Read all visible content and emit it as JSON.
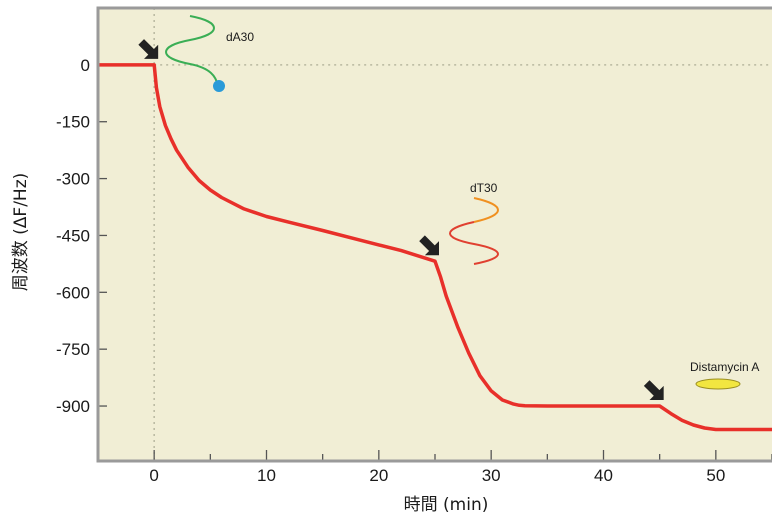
{
  "chart_data": {
    "type": "line",
    "xlabel": "時間 (min)",
    "ylabel": "周波数 (ΔF/Hz)",
    "xlim": [
      -5,
      55
    ],
    "ylim": [
      -1045,
      150
    ],
    "x_ticks": [
      0,
      10,
      20,
      30,
      40,
      50
    ],
    "y_ticks": [
      0,
      -150,
      -300,
      -450,
      -600,
      -750,
      -900
    ],
    "grid": false,
    "background": "#f1eed5",
    "frame_color": "#9a9a9a",
    "line_color": "#e8302a",
    "series": [
      {
        "x": [
          -5,
          0,
          0.2,
          0.5,
          1,
          1.5,
          2,
          3,
          4,
          5,
          6,
          8,
          10,
          12,
          15,
          18,
          20,
          22,
          25,
          25.5,
          26,
          27,
          28,
          29,
          30,
          31,
          32,
          32.5,
          33,
          35,
          40,
          45,
          46,
          47,
          48,
          49,
          50,
          55
        ],
        "values": [
          0,
          0,
          -60,
          -110,
          -160,
          -195,
          -225,
          -270,
          -305,
          -330,
          -350,
          -380,
          -400,
          -415,
          -437,
          -460,
          -475,
          -490,
          -518,
          -560,
          -610,
          -690,
          -760,
          -820,
          -860,
          -884,
          -895,
          -898,
          -899,
          -900,
          -900,
          -900,
          -920,
          -938,
          -950,
          -958,
          -962,
          -962
        ]
      }
    ],
    "vertical_reference_x": 0,
    "horizontal_reference_y": 0,
    "annotations": [
      {
        "text": "dA30",
        "arrow_at": [
          0,
          0
        ]
      },
      {
        "text": "dT30",
        "arrow_at": [
          25,
          -518
        ]
      },
      {
        "text": "Distamycin A",
        "arrow_at": [
          45,
          -900
        ]
      }
    ],
    "colors": {
      "dA30_strand": "#3aae55",
      "dA30_bead": "#2a9ad8",
      "dT30_strand_top": "#f09020",
      "dT30_strand_bottom": "#e04030",
      "distamycin": "#f2e640",
      "arrow": "#222222"
    }
  }
}
